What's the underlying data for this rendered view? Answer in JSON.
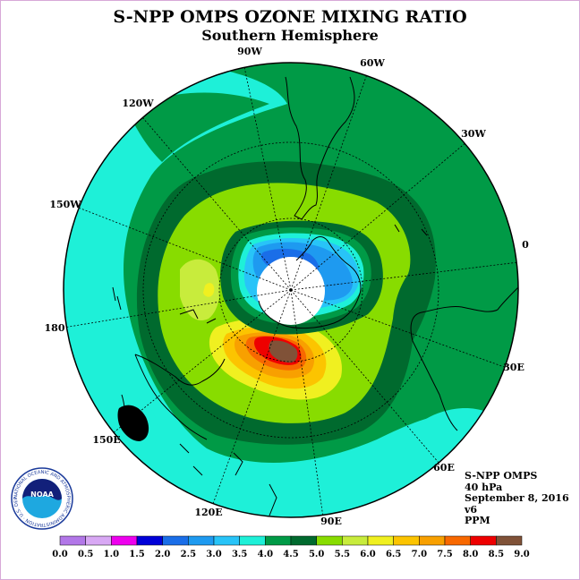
{
  "title": "S-NPP OMPS OZONE MIXING RATIO",
  "subtitle": "Southern Hemisphere",
  "longitude_labels": [
    "90W",
    "60W",
    "30W",
    "0",
    "30E",
    "60E",
    "90E",
    "120E",
    "150E",
    "180",
    "150W",
    "120W"
  ],
  "info": {
    "instrument": "S-NPP OMPS",
    "level": "40 hPa",
    "date": "September 8, 2016",
    "version": "v6",
    "units": "PPM"
  },
  "logo": {
    "text": "NOAA",
    "ring_text": "NATIONAL OCEANIC AND ATMOSPHERIC ADMINISTRATION · U.S. DEPARTMENT OF COMMERCE"
  },
  "colors": {
    "land_outline": "#000000",
    "no_data": "#ffffff"
  },
  "chart_data": {
    "type": "heatmap",
    "projection": "south polar stereographic",
    "units": "PPM",
    "colorbar": {
      "tick_labels": [
        "0.0",
        "0.5",
        "1.0",
        "1.5",
        "2.0",
        "2.5",
        "3.0",
        "3.5",
        "4.0",
        "4.5",
        "5.0",
        "5.5",
        "6.0",
        "6.5",
        "7.0",
        "7.5",
        "8.0",
        "8.5",
        "9.0"
      ],
      "bins": [
        {
          "min": 0.0,
          "max": 0.5,
          "color": "#b277e8"
        },
        {
          "min": 0.5,
          "max": 1.0,
          "color": "#d8a8f4"
        },
        {
          "min": 1.0,
          "max": 1.5,
          "color": "#ee00ee"
        },
        {
          "min": 1.5,
          "max": 2.0,
          "color": "#0000d8"
        },
        {
          "min": 2.0,
          "max": 2.5,
          "color": "#1a6ee8"
        },
        {
          "min": 2.5,
          "max": 3.0,
          "color": "#1e9af0"
        },
        {
          "min": 3.0,
          "max": 3.5,
          "color": "#28c4f8"
        },
        {
          "min": 3.5,
          "max": 4.0,
          "color": "#1ef0d8"
        },
        {
          "min": 4.0,
          "max": 4.5,
          "color": "#009a46"
        },
        {
          "min": 4.5,
          "max": 5.0,
          "color": "#006a2e"
        },
        {
          "min": 5.0,
          "max": 5.5,
          "color": "#88dc00"
        },
        {
          "min": 5.5,
          "max": 6.0,
          "color": "#c8ec3c"
        },
        {
          "min": 6.0,
          "max": 6.5,
          "color": "#f0f020"
        },
        {
          "min": 6.5,
          "max": 7.0,
          "color": "#fcc400"
        },
        {
          "min": 7.0,
          "max": 7.5,
          "color": "#f8a000"
        },
        {
          "min": 7.5,
          "max": 8.0,
          "color": "#f86800"
        },
        {
          "min": 8.0,
          "max": 8.5,
          "color": "#ee0000"
        },
        {
          "min": 8.5,
          "max": 9.0,
          "color": "#805238"
        }
      ]
    }
  }
}
